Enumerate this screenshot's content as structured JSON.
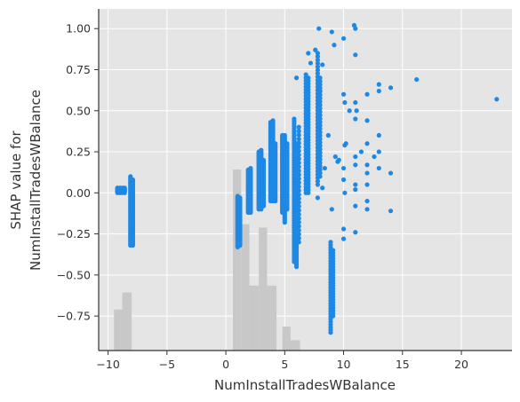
{
  "chart_data": {
    "type": "scatter",
    "title": "",
    "xlabel": "NumInstallTradesWBalance",
    "ylabel_lines": [
      "SHAP value for",
      "NumInstallTradesWBalance"
    ],
    "xlim": [
      -10.8,
      24.3
    ],
    "ylim": [
      -0.96,
      1.12
    ],
    "x_ticks": [
      -10,
      -5,
      0,
      5,
      10,
      15,
      20
    ],
    "x_tick_labels": [
      "−10",
      "−5",
      "0",
      "5",
      "10",
      "15",
      "20"
    ],
    "y_ticks": [
      -0.75,
      -0.5,
      -0.25,
      0.0,
      0.25,
      0.5,
      0.75,
      1.0
    ],
    "y_tick_labels": [
      "−0.75",
      "−0.50",
      "−0.25",
      "0.00",
      "0.25",
      "0.50",
      "0.75",
      "1.00"
    ],
    "grid": true,
    "colors": {
      "background": "#e5e5e5",
      "grid": "#ffffff",
      "points": "#1e88e5",
      "histogram": "#c8c8c8",
      "axis": "#333333"
    },
    "histogram_bins": [
      {
        "x0": -9.5,
        "x1": -8.8,
        "h": 0.12
      },
      {
        "x0": -8.8,
        "x1": -8.0,
        "h": 0.17
      },
      {
        "x0": 0.6,
        "x1": 1.3,
        "h": 0.53
      },
      {
        "x0": 1.3,
        "x1": 2.0,
        "h": 0.37
      },
      {
        "x0": 2.0,
        "x1": 2.8,
        "h": 0.19
      },
      {
        "x0": 2.8,
        "x1": 3.5,
        "h": 0.36
      },
      {
        "x0": 3.5,
        "x1": 4.3,
        "h": 0.19
      },
      {
        "x0": 4.8,
        "x1": 5.5,
        "h": 0.07
      },
      {
        "x0": 5.5,
        "x1": 6.3,
        "h": 0.03
      }
    ],
    "point_columns": [
      {
        "x": -9.2,
        "ymin": 0.0,
        "ymax": 0.03,
        "n": 12
      },
      {
        "x": -9.0,
        "ymin": 0.0,
        "ymax": 0.03,
        "n": 12
      },
      {
        "x": -8.8,
        "ymin": 0.0,
        "ymax": 0.03,
        "n": 12
      },
      {
        "x": -8.6,
        "ymin": 0.0,
        "ymax": 0.03,
        "n": 12
      },
      {
        "x": -8.1,
        "ymin": -0.32,
        "ymax": 0.1,
        "n": 50
      },
      {
        "x": -7.9,
        "ymin": -0.32,
        "ymax": 0.08,
        "n": 50
      },
      {
        "x": 1.0,
        "ymin": -0.33,
        "ymax": -0.02,
        "n": 50
      },
      {
        "x": 1.2,
        "ymin": -0.32,
        "ymax": -0.03,
        "n": 50
      },
      {
        "x": 1.9,
        "ymin": -0.12,
        "ymax": 0.14,
        "n": 40
      },
      {
        "x": 2.1,
        "ymin": -0.12,
        "ymax": 0.15,
        "n": 40
      },
      {
        "x": 2.8,
        "ymin": -0.1,
        "ymax": 0.25,
        "n": 50
      },
      {
        "x": 3.0,
        "ymin": -0.1,
        "ymax": 0.26,
        "n": 50
      },
      {
        "x": 3.2,
        "ymin": -0.08,
        "ymax": 0.2,
        "n": 40
      },
      {
        "x": 3.8,
        "ymin": -0.05,
        "ymax": 0.43,
        "n": 60
      },
      {
        "x": 4.0,
        "ymin": -0.05,
        "ymax": 0.44,
        "n": 60
      },
      {
        "x": 4.2,
        "ymin": -0.05,
        "ymax": 0.3,
        "n": 40
      },
      {
        "x": 4.8,
        "ymin": -0.12,
        "ymax": 0.35,
        "n": 60
      },
      {
        "x": 5.0,
        "ymin": -0.18,
        "ymax": 0.35,
        "n": 60
      },
      {
        "x": 5.2,
        "ymin": -0.1,
        "ymax": 0.3,
        "n": 40
      },
      {
        "x": 5.8,
        "ymin": -0.42,
        "ymax": 0.45,
        "n": 60
      },
      {
        "x": 6.0,
        "ymin": -0.45,
        "ymax": 0.3,
        "n": 60
      },
      {
        "x": 6.2,
        "ymin": -0.3,
        "ymax": 0.4,
        "n": 30
      },
      {
        "x": 6.8,
        "ymin": 0.0,
        "ymax": 0.72,
        "n": 40
      },
      {
        "x": 7.0,
        "ymin": 0.0,
        "ymax": 0.7,
        "n": 40
      },
      {
        "x": 7.8,
        "ymin": 0.05,
        "ymax": 0.85,
        "n": 40
      },
      {
        "x": 8.0,
        "ymin": 0.1,
        "ymax": 0.7,
        "n": 30
      },
      {
        "x": 8.9,
        "ymin": -0.85,
        "ymax": -0.3,
        "n": 35
      },
      {
        "x": 9.1,
        "ymin": -0.75,
        "ymax": -0.35,
        "n": 25
      }
    ],
    "points": [
      [
        6,
        0.7
      ],
      [
        7,
        0.85
      ],
      [
        7.2,
        0.79
      ],
      [
        7.6,
        0.87
      ],
      [
        7.9,
        1.0
      ],
      [
        8.2,
        0.78
      ],
      [
        9,
        0.98
      ],
      [
        9.2,
        0.9
      ],
      [
        9.5,
        0.19
      ],
      [
        10,
        0.94
      ],
      [
        10,
        0.6
      ],
      [
        10.1,
        0.55
      ],
      [
        10.2,
        0.3
      ],
      [
        10.1,
        0.29
      ],
      [
        10,
        0.15
      ],
      [
        10,
        0.08
      ],
      [
        10.1,
        0.0
      ],
      [
        10,
        -0.22
      ],
      [
        10,
        -0.28
      ],
      [
        10.9,
        1.02
      ],
      [
        11,
        1.0
      ],
      [
        11,
        0.84
      ],
      [
        11,
        0.55
      ],
      [
        11.1,
        0.5
      ],
      [
        11,
        0.45
      ],
      [
        11,
        0.22
      ],
      [
        11,
        0.17
      ],
      [
        11,
        0.05
      ],
      [
        11,
        0.02
      ],
      [
        11,
        -0.08
      ],
      [
        11,
        -0.24
      ],
      [
        12,
        0.6
      ],
      [
        12,
        0.44
      ],
      [
        12,
        0.3
      ],
      [
        12,
        0.17
      ],
      [
        12,
        0.12
      ],
      [
        12,
        0.05
      ],
      [
        12,
        -0.05
      ],
      [
        12,
        -0.1
      ],
      [
        13,
        0.66
      ],
      [
        13,
        0.62
      ],
      [
        13,
        0.35
      ],
      [
        13,
        0.25
      ],
      [
        13,
        0.15
      ],
      [
        14,
        0.64
      ],
      [
        14,
        0.12
      ],
      [
        14,
        -0.11
      ],
      [
        16.2,
        0.69
      ],
      [
        23,
        0.57
      ],
      [
        8,
        0.62
      ],
      [
        8.4,
        0.15
      ],
      [
        9.3,
        0.22
      ],
      [
        8.2,
        0.03
      ],
      [
        7.8,
        -0.03
      ],
      [
        9.0,
        -0.1
      ],
      [
        8.7,
        0.35
      ],
      [
        9.6,
        0.2
      ],
      [
        10.5,
        0.5
      ],
      [
        11.5,
        0.25
      ],
      [
        12.6,
        0.22
      ]
    ]
  }
}
